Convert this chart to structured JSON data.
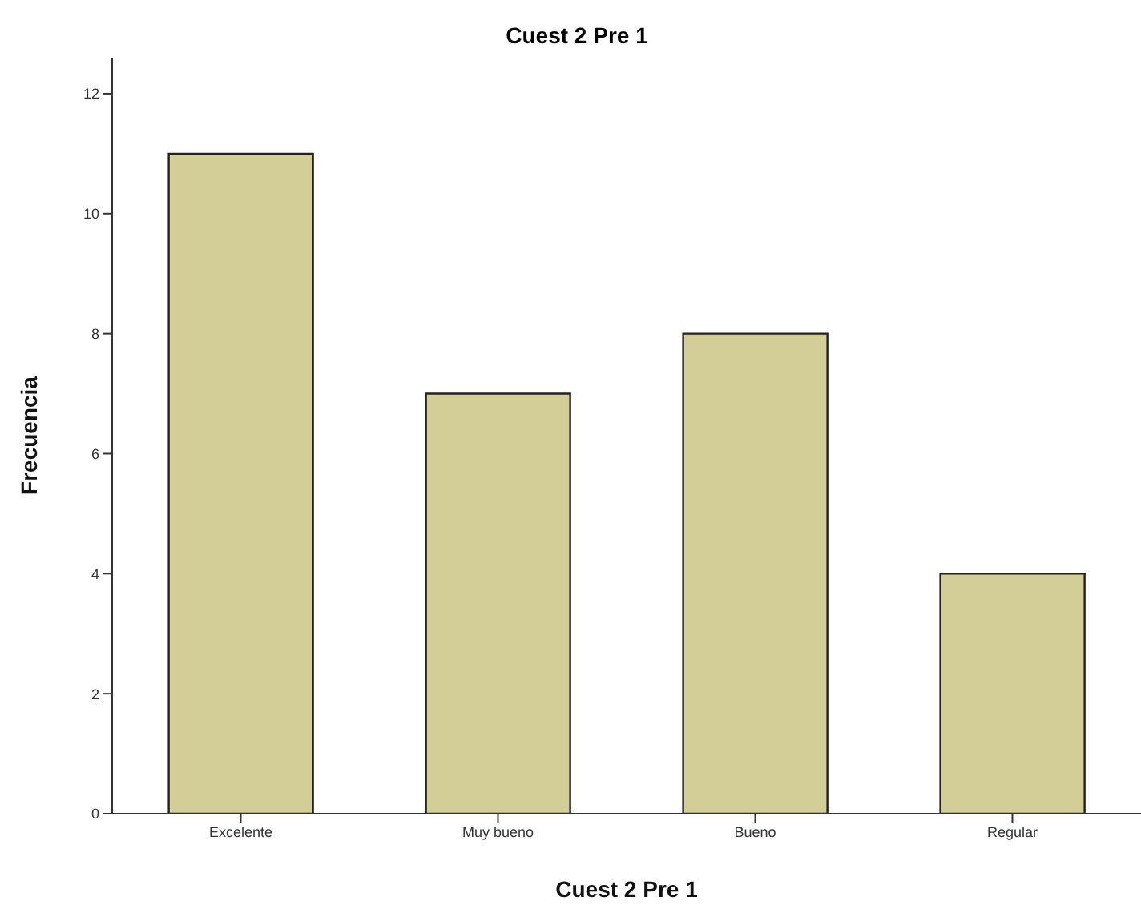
{
  "chart_data": {
    "type": "bar",
    "title": "Cuest 2 Pre 1",
    "xlabel": "Cuest 2 Pre 1",
    "ylabel": "Frecuencia",
    "categories": [
      "Excelente",
      "Muy bueno",
      "Bueno",
      "Regular"
    ],
    "values": [
      11,
      7,
      8,
      4
    ],
    "color": "#d3ce97",
    "ylim": [
      0,
      12.6
    ],
    "yticks": [
      0,
      2,
      4,
      6,
      8,
      10,
      12
    ],
    "grid": false
  }
}
